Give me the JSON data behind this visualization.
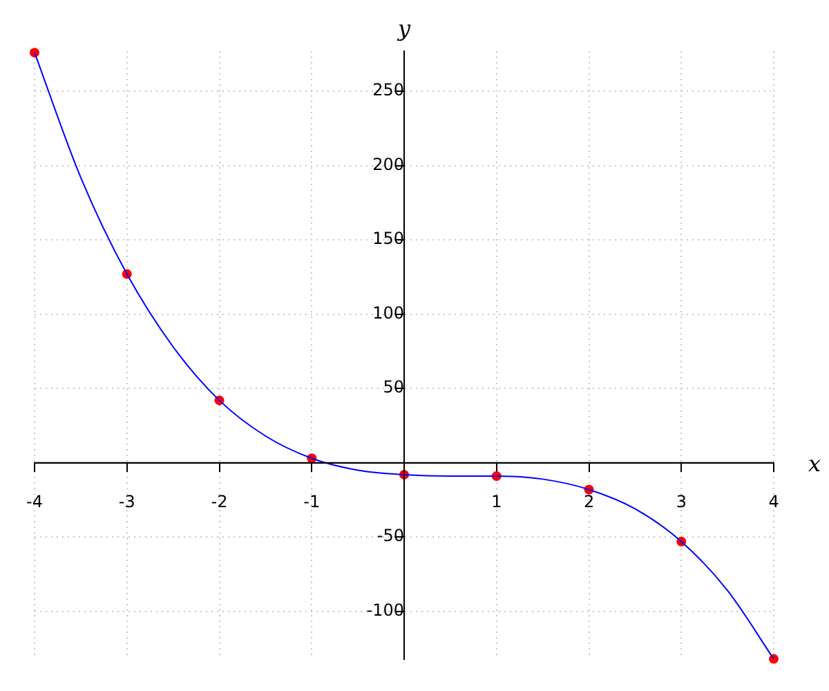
{
  "chart_data": {
    "type": "line",
    "xlabel": "x",
    "ylabel": "y",
    "xlim": [
      -4,
      4
    ],
    "ylim": [
      -132,
      277
    ],
    "xticks": [
      -4,
      -3,
      -2,
      -1,
      1,
      2,
      3,
      4
    ],
    "yticks": [
      -100,
      -50,
      50,
      100,
      150,
      200,
      250
    ],
    "grid": true,
    "series": [
      {
        "color": "#0000ff",
        "marker": "none",
        "x": [
          -4,
          -3.5,
          -3,
          -2.5,
          -2,
          -1.5,
          -1,
          -0.5,
          0,
          0.5,
          1,
          1.5,
          2,
          2.5,
          3,
          3.5,
          4
        ],
        "values": [
          276,
          192,
          127,
          78,
          42,
          18,
          3,
          -5,
          -8,
          -9,
          -9,
          -11,
          -18,
          -31,
          -53,
          -86,
          -132
        ]
      },
      {
        "type": "scatter",
        "color": "#ff0000",
        "marker": "circle",
        "x": [
          -4,
          -3,
          -2,
          -1,
          0,
          1,
          2,
          3,
          4
        ],
        "values": [
          276,
          127,
          42,
          3,
          -8,
          -9,
          -18,
          -53,
          -132
        ]
      }
    ]
  }
}
